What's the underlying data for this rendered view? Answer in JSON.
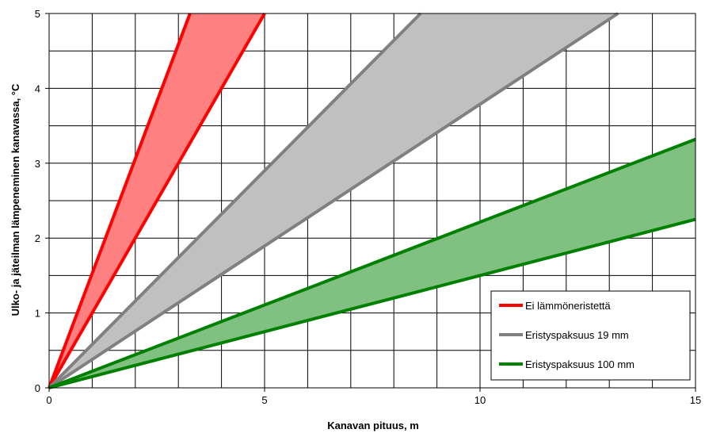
{
  "chart_data": {
    "type": "area",
    "title": "",
    "xlabel": "Kanavan pituus, m",
    "ylabel": "Ulko- ja jäteilman lämpeneminen kanavassa, °C",
    "xlim": [
      0,
      15
    ],
    "ylim": [
      0,
      5
    ],
    "x_ticks": [
      0,
      5,
      10,
      15
    ],
    "y_ticks": [
      0,
      1,
      2,
      3,
      4,
      5
    ],
    "x_minor_step": 1,
    "grid": true,
    "legend_position": "bottom-right",
    "series": [
      {
        "name": "Ei lämmöneristettä",
        "color": "#ff0000",
        "fill_color": "#ff8080",
        "upper_slope": 1.53,
        "lower_slope": 1.0,
        "upper_x": [
          0,
          3.27
        ],
        "upper_y": [
          0,
          5
        ],
        "lower_x": [
          0,
          5
        ],
        "lower_y": [
          0,
          5
        ]
      },
      {
        "name": "Eristyspaksuus 19 mm",
        "color": "#808080",
        "fill_color": "#c0c0c0",
        "upper_slope": 0.58,
        "lower_slope": 0.38,
        "upper_x": [
          0,
          8.62
        ],
        "upper_y": [
          0,
          5
        ],
        "lower_x": [
          0,
          13.2
        ],
        "lower_y": [
          0,
          5
        ]
      },
      {
        "name": "Eristyspaksuus 100 mm",
        "color": "#008000",
        "fill_color": "#80c080",
        "upper_slope": 0.221,
        "lower_slope": 0.15,
        "upper_x": [
          0,
          15
        ],
        "upper_y": [
          0,
          3.32
        ],
        "lower_x": [
          0,
          15
        ],
        "lower_y": [
          0,
          2.25
        ]
      }
    ]
  }
}
